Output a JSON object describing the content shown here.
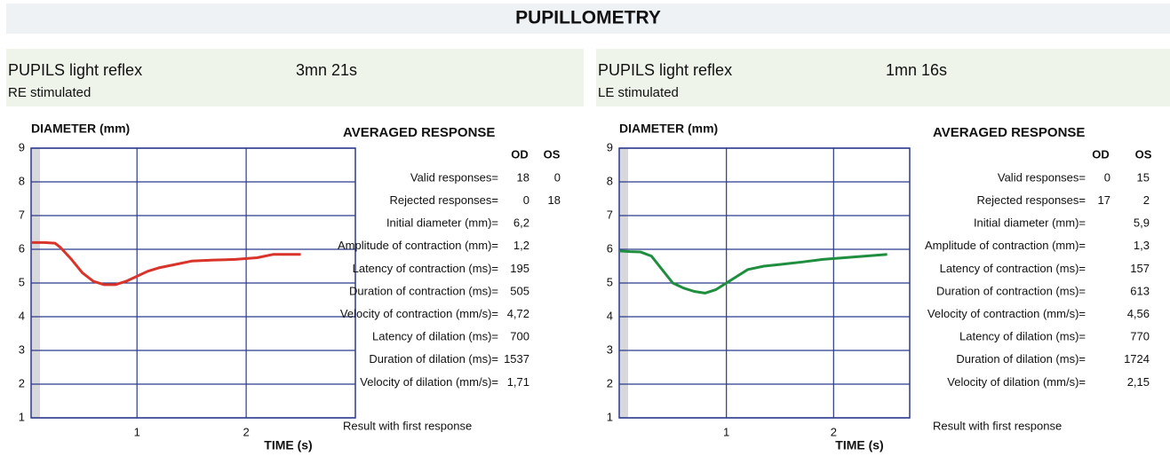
{
  "title": "PUPILLOMETRY",
  "panels": [
    {
      "test": "PUPILS light reflex",
      "duration": "3mn 21s",
      "stimulated": "RE stimulated",
      "chart": {
        "type": "line",
        "ylabel": "DIAMETER (mm)",
        "xlabel": "TIME (s)",
        "xlim": [
          0.03,
          3.0
        ],
        "ylim": [
          1,
          9
        ],
        "xticks": [
          1,
          2
        ],
        "yticks": [
          1,
          2,
          3,
          4,
          5,
          6,
          7,
          8,
          9
        ],
        "grid": true,
        "series": [
          {
            "color": "#d8342a",
            "x": [
              0.03,
              0.15,
              0.25,
              0.3,
              0.4,
              0.5,
              0.6,
              0.7,
              0.8,
              0.9,
              1.0,
              1.1,
              1.2,
              1.35,
              1.5,
              1.7,
              1.9,
              2.1,
              2.25,
              2.35,
              2.5
            ],
            "values": [
              6.2,
              6.2,
              6.18,
              6.05,
              5.7,
              5.3,
              5.05,
              4.95,
              4.95,
              5.05,
              5.2,
              5.35,
              5.45,
              5.55,
              5.65,
              5.68,
              5.7,
              5.75,
              5.85,
              5.85,
              5.85
            ]
          }
        ]
      },
      "table": {
        "title": "AVERAGED RESPONSE",
        "columns": [
          "OD",
          "OS"
        ],
        "colors": [
          "#e0261c",
          "#1e8f3e"
        ],
        "rows": [
          {
            "label": "Valid responses=",
            "values": [
              "18",
              "0"
            ]
          },
          {
            "label": "Rejected responses=",
            "values": [
              "0",
              "18"
            ]
          },
          {
            "label": "Initial diameter (mm)=",
            "values": [
              "6,2",
              null
            ]
          },
          {
            "label": "Amplitude of contraction (mm)=",
            "values": [
              "1,2",
              null
            ]
          },
          {
            "label": "Latency of contraction (ms)=",
            "values": [
              "195",
              null
            ]
          },
          {
            "label": "Duration of contraction (ms)=",
            "values": [
              "505",
              null
            ]
          },
          {
            "label": "Velocity of contraction (mm/s)=",
            "values": [
              "4,72",
              null
            ]
          },
          {
            "label": "Latency of dilation (ms)=",
            "values": [
              "700",
              null
            ]
          },
          {
            "label": "Duration of dilation (ms)=",
            "values": [
              "1537",
              null
            ]
          },
          {
            "label": "Velocity of dilation (mm/s)=",
            "values": [
              "1,71",
              null
            ]
          }
        ]
      },
      "footnote": "Result with first response"
    },
    {
      "test": "PUPILS light reflex",
      "duration": "1mn 16s",
      "stimulated": "LE stimulated",
      "chart": {
        "type": "line",
        "ylabel": "DIAMETER (mm)",
        "xlabel": "TIME (s)",
        "xlim": [
          0,
          2.71
        ],
        "ylim": [
          1,
          9
        ],
        "xticks": [
          1,
          2
        ],
        "yticks": [
          1,
          2,
          3,
          4,
          5,
          6,
          7,
          8,
          9
        ],
        "grid": true,
        "series": [
          {
            "color": "#1f8e3f",
            "x": [
              0.0,
              0.1,
              0.2,
              0.3,
              0.4,
              0.5,
              0.6,
              0.7,
              0.8,
              0.9,
              1.0,
              1.1,
              1.2,
              1.35,
              1.5,
              1.7,
              1.9,
              2.1,
              2.3,
              2.5
            ],
            "values": [
              5.95,
              5.93,
              5.92,
              5.8,
              5.4,
              5.0,
              4.85,
              4.75,
              4.7,
              4.8,
              5.0,
              5.2,
              5.4,
              5.5,
              5.55,
              5.62,
              5.7,
              5.75,
              5.8,
              5.85
            ]
          }
        ]
      },
      "table": {
        "title": "AVERAGED RESPONSE",
        "columns": [
          "OD",
          "OS"
        ],
        "colors": [
          "#e0261c",
          "#1e8f3e"
        ],
        "rows": [
          {
            "label": "Valid responses=",
            "values": [
              "0",
              "15"
            ]
          },
          {
            "label": "Rejected responses=",
            "values": [
              "17",
              "2"
            ]
          },
          {
            "label": "Initial diameter (mm)=",
            "values": [
              null,
              "5,9"
            ]
          },
          {
            "label": "Amplitude of contraction (mm)=",
            "values": [
              null,
              "1,3"
            ]
          },
          {
            "label": "Latency of contraction (ms)=",
            "values": [
              null,
              "157"
            ]
          },
          {
            "label": "Duration of contraction (ms)=",
            "values": [
              null,
              "613"
            ]
          },
          {
            "label": "Velocity of contraction (mm/s)=",
            "values": [
              null,
              "4,56"
            ]
          },
          {
            "label": "Latency of dilation (ms)=",
            "values": [
              null,
              "770"
            ]
          },
          {
            "label": "Duration of dilation (ms)=",
            "values": [
              null,
              "1724"
            ]
          },
          {
            "label": "Velocity of dilation (mm/s)=",
            "values": [
              null,
              "2,15"
            ]
          }
        ]
      },
      "footnote": "Result with first response"
    }
  ]
}
